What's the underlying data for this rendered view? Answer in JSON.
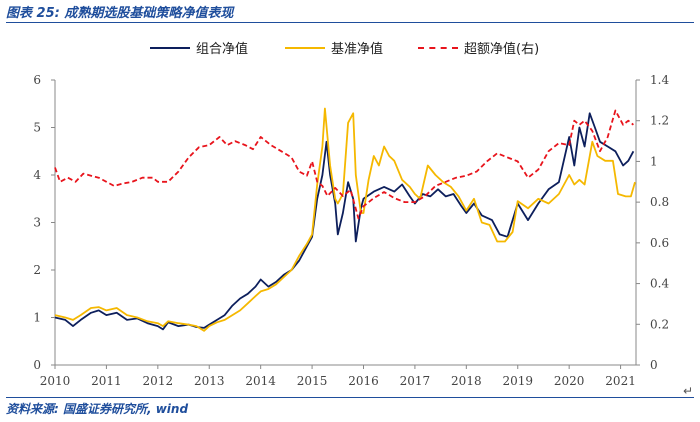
{
  "figure": {
    "title": "图表 25: 成熟期选股基础策略净值表现",
    "source": "资料来源: 国盛证券研究所, wind",
    "return_mark": "↵"
  },
  "colors": {
    "portfolio": "#0d1f5c",
    "benchmark": "#f5b800",
    "excess": "#e8141c",
    "axis": "#888888"
  },
  "chart_data": {
    "type": "line",
    "legend": {
      "placement": "top",
      "labels": [
        "组合净值",
        "基准净值",
        "超额净值(右)"
      ]
    },
    "x_ticks": [
      "2010",
      "2011",
      "2012",
      "2013",
      "2014",
      "2015",
      "2016",
      "2017",
      "2018",
      "2019",
      "2020",
      "2021"
    ],
    "x_range": [
      2010.0,
      2021.3
    ],
    "y_left_ticks": [
      "0",
      "1",
      "2",
      "3",
      "4",
      "5",
      "6"
    ],
    "y_left_range": [
      0,
      6
    ],
    "y_right_ticks": [
      "0",
      "0.2",
      "0.4",
      "0.6",
      "0.8",
      "1",
      "1.2",
      "1.4"
    ],
    "y_right_range": [
      0,
      1.4
    ],
    "series": [
      {
        "name": "组合净值",
        "axis": "left",
        "style": "solid",
        "points": [
          [
            2010.0,
            1.0
          ],
          [
            2010.2,
            0.95
          ],
          [
            2010.35,
            0.82
          ],
          [
            2010.5,
            0.95
          ],
          [
            2010.7,
            1.1
          ],
          [
            2010.85,
            1.15
          ],
          [
            2011.0,
            1.05
          ],
          [
            2011.2,
            1.1
          ],
          [
            2011.4,
            0.95
          ],
          [
            2011.6,
            0.98
          ],
          [
            2011.8,
            0.88
          ],
          [
            2012.0,
            0.82
          ],
          [
            2012.1,
            0.75
          ],
          [
            2012.2,
            0.9
          ],
          [
            2012.4,
            0.82
          ],
          [
            2012.6,
            0.85
          ],
          [
            2012.75,
            0.8
          ],
          [
            2012.9,
            0.78
          ],
          [
            2013.0,
            0.85
          ],
          [
            2013.15,
            0.95
          ],
          [
            2013.3,
            1.05
          ],
          [
            2013.45,
            1.25
          ],
          [
            2013.6,
            1.4
          ],
          [
            2013.75,
            1.5
          ],
          [
            2013.9,
            1.65
          ],
          [
            2014.0,
            1.8
          ],
          [
            2014.15,
            1.65
          ],
          [
            2014.3,
            1.75
          ],
          [
            2014.45,
            1.9
          ],
          [
            2014.6,
            2.0
          ],
          [
            2014.75,
            2.2
          ],
          [
            2014.9,
            2.5
          ],
          [
            2015.0,
            2.7
          ],
          [
            2015.1,
            3.5
          ],
          [
            2015.2,
            4.0
          ],
          [
            2015.28,
            4.7
          ],
          [
            2015.35,
            4.0
          ],
          [
            2015.45,
            3.4
          ],
          [
            2015.5,
            2.75
          ],
          [
            2015.6,
            3.2
          ],
          [
            2015.7,
            3.85
          ],
          [
            2015.8,
            3.5
          ],
          [
            2015.85,
            2.6
          ],
          [
            2015.95,
            3.3
          ],
          [
            2016.0,
            3.5
          ],
          [
            2016.2,
            3.65
          ],
          [
            2016.4,
            3.75
          ],
          [
            2016.6,
            3.65
          ],
          [
            2016.75,
            3.8
          ],
          [
            2016.9,
            3.55
          ],
          [
            2017.0,
            3.4
          ],
          [
            2017.15,
            3.6
          ],
          [
            2017.3,
            3.55
          ],
          [
            2017.45,
            3.7
          ],
          [
            2017.6,
            3.55
          ],
          [
            2017.75,
            3.6
          ],
          [
            2017.9,
            3.35
          ],
          [
            2018.0,
            3.2
          ],
          [
            2018.15,
            3.4
          ],
          [
            2018.3,
            3.15
          ],
          [
            2018.5,
            3.05
          ],
          [
            2018.65,
            2.75
          ],
          [
            2018.8,
            2.7
          ],
          [
            2019.0,
            3.4
          ],
          [
            2019.2,
            3.05
          ],
          [
            2019.4,
            3.4
          ],
          [
            2019.6,
            3.7
          ],
          [
            2019.8,
            3.85
          ],
          [
            2020.0,
            4.8
          ],
          [
            2020.1,
            4.2
          ],
          [
            2020.2,
            5.0
          ],
          [
            2020.3,
            4.6
          ],
          [
            2020.4,
            5.3
          ],
          [
            2020.5,
            5.0
          ],
          [
            2020.6,
            4.7
          ],
          [
            2020.75,
            4.6
          ],
          [
            2020.9,
            4.5
          ],
          [
            2021.05,
            4.2
          ],
          [
            2021.15,
            4.3
          ],
          [
            2021.25,
            4.5
          ]
        ]
      },
      {
        "name": "基准净值",
        "axis": "left",
        "style": "solid",
        "points": [
          [
            2010.0,
            1.05
          ],
          [
            2010.2,
            1.0
          ],
          [
            2010.35,
            0.95
          ],
          [
            2010.5,
            1.05
          ],
          [
            2010.7,
            1.2
          ],
          [
            2010.85,
            1.22
          ],
          [
            2011.0,
            1.15
          ],
          [
            2011.2,
            1.2
          ],
          [
            2011.4,
            1.05
          ],
          [
            2011.6,
            1.0
          ],
          [
            2011.8,
            0.92
          ],
          [
            2012.0,
            0.88
          ],
          [
            2012.1,
            0.82
          ],
          [
            2012.2,
            0.92
          ],
          [
            2012.4,
            0.88
          ],
          [
            2012.6,
            0.85
          ],
          [
            2012.75,
            0.82
          ],
          [
            2012.9,
            0.72
          ],
          [
            2013.0,
            0.82
          ],
          [
            2013.15,
            0.9
          ],
          [
            2013.3,
            0.95
          ],
          [
            2013.45,
            1.05
          ],
          [
            2013.6,
            1.15
          ],
          [
            2013.75,
            1.3
          ],
          [
            2013.9,
            1.45
          ],
          [
            2014.0,
            1.55
          ],
          [
            2014.15,
            1.6
          ],
          [
            2014.3,
            1.7
          ],
          [
            2014.45,
            1.85
          ],
          [
            2014.6,
            2.0
          ],
          [
            2014.75,
            2.3
          ],
          [
            2014.9,
            2.55
          ],
          [
            2015.0,
            2.75
          ],
          [
            2015.1,
            3.8
          ],
          [
            2015.2,
            4.6
          ],
          [
            2015.25,
            5.4
          ],
          [
            2015.35,
            4.2
          ],
          [
            2015.45,
            3.5
          ],
          [
            2015.5,
            3.4
          ],
          [
            2015.6,
            3.6
          ],
          [
            2015.7,
            5.1
          ],
          [
            2015.8,
            5.3
          ],
          [
            2015.85,
            4.0
          ],
          [
            2015.95,
            3.2
          ],
          [
            2016.0,
            3.2
          ],
          [
            2016.1,
            3.9
          ],
          [
            2016.2,
            4.4
          ],
          [
            2016.3,
            4.2
          ],
          [
            2016.4,
            4.6
          ],
          [
            2016.5,
            4.4
          ],
          [
            2016.6,
            4.3
          ],
          [
            2016.75,
            3.9
          ],
          [
            2016.9,
            3.75
          ],
          [
            2017.0,
            3.6
          ],
          [
            2017.1,
            3.5
          ],
          [
            2017.25,
            4.2
          ],
          [
            2017.4,
            4.0
          ],
          [
            2017.55,
            3.85
          ],
          [
            2017.7,
            3.75
          ],
          [
            2017.85,
            3.55
          ],
          [
            2018.0,
            3.25
          ],
          [
            2018.15,
            3.5
          ],
          [
            2018.3,
            3.0
          ],
          [
            2018.45,
            2.95
          ],
          [
            2018.6,
            2.6
          ],
          [
            2018.75,
            2.6
          ],
          [
            2018.9,
            2.8
          ],
          [
            2019.0,
            3.45
          ],
          [
            2019.2,
            3.3
          ],
          [
            2019.4,
            3.5
          ],
          [
            2019.6,
            3.4
          ],
          [
            2019.8,
            3.6
          ],
          [
            2020.0,
            4.0
          ],
          [
            2020.1,
            3.8
          ],
          [
            2020.2,
            3.9
          ],
          [
            2020.3,
            3.8
          ],
          [
            2020.45,
            4.7
          ],
          [
            2020.55,
            4.4
          ],
          [
            2020.7,
            4.3
          ],
          [
            2020.85,
            4.3
          ],
          [
            2020.95,
            3.6
          ],
          [
            2021.1,
            3.55
          ],
          [
            2021.2,
            3.55
          ],
          [
            2021.28,
            3.85
          ]
        ]
      },
      {
        "name": "超额净值(右)",
        "axis": "right",
        "style": "dashed",
        "points": [
          [
            2010.0,
            0.97
          ],
          [
            2010.1,
            0.9
          ],
          [
            2010.25,
            0.92
          ],
          [
            2010.4,
            0.9
          ],
          [
            2010.55,
            0.94
          ],
          [
            2010.7,
            0.93
          ],
          [
            2010.85,
            0.92
          ],
          [
            2011.0,
            0.9
          ],
          [
            2011.15,
            0.88
          ],
          [
            2011.3,
            0.89
          ],
          [
            2011.5,
            0.9
          ],
          [
            2011.7,
            0.92
          ],
          [
            2011.9,
            0.92
          ],
          [
            2012.0,
            0.9
          ],
          [
            2012.2,
            0.9
          ],
          [
            2012.4,
            0.95
          ],
          [
            2012.6,
            1.02
          ],
          [
            2012.8,
            1.07
          ],
          [
            2013.0,
            1.08
          ],
          [
            2013.2,
            1.12
          ],
          [
            2013.35,
            1.08
          ],
          [
            2013.5,
            1.1
          ],
          [
            2013.7,
            1.08
          ],
          [
            2013.85,
            1.06
          ],
          [
            2014.0,
            1.12
          ],
          [
            2014.2,
            1.08
          ],
          [
            2014.4,
            1.05
          ],
          [
            2014.6,
            1.02
          ],
          [
            2014.75,
            0.95
          ],
          [
            2014.9,
            0.93
          ],
          [
            2015.0,
            1.0
          ],
          [
            2015.1,
            0.9
          ],
          [
            2015.2,
            0.88
          ],
          [
            2015.3,
            0.83
          ],
          [
            2015.45,
            0.87
          ],
          [
            2015.6,
            0.83
          ],
          [
            2015.75,
            0.86
          ],
          [
            2015.9,
            0.72
          ],
          [
            2016.0,
            0.78
          ],
          [
            2016.2,
            0.82
          ],
          [
            2016.4,
            0.85
          ],
          [
            2016.6,
            0.82
          ],
          [
            2016.8,
            0.8
          ],
          [
            2017.0,
            0.8
          ],
          [
            2017.2,
            0.83
          ],
          [
            2017.4,
            0.88
          ],
          [
            2017.6,
            0.9
          ],
          [
            2017.8,
            0.92
          ],
          [
            2018.0,
            0.93
          ],
          [
            2018.2,
            0.95
          ],
          [
            2018.4,
            1.0
          ],
          [
            2018.6,
            1.04
          ],
          [
            2018.8,
            1.02
          ],
          [
            2019.0,
            1.0
          ],
          [
            2019.2,
            0.92
          ],
          [
            2019.4,
            0.96
          ],
          [
            2019.6,
            1.05
          ],
          [
            2019.8,
            1.09
          ],
          [
            2020.0,
            1.08
          ],
          [
            2020.1,
            1.2
          ],
          [
            2020.2,
            1.18
          ],
          [
            2020.3,
            1.2
          ],
          [
            2020.45,
            1.15
          ],
          [
            2020.6,
            1.05
          ],
          [
            2020.75,
            1.12
          ],
          [
            2020.9,
            1.25
          ],
          [
            2021.05,
            1.18
          ],
          [
            2021.15,
            1.2
          ],
          [
            2021.25,
            1.18
          ]
        ]
      }
    ]
  }
}
